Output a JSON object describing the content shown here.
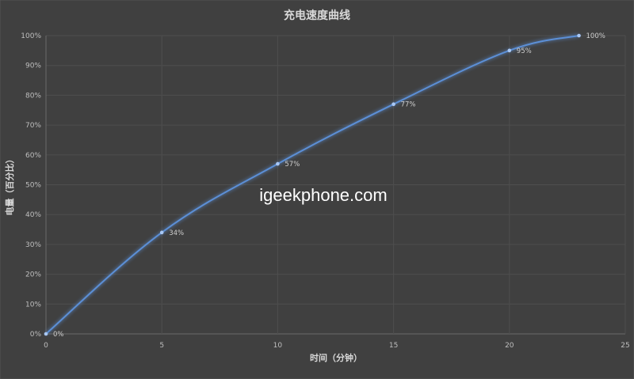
{
  "chart_data": {
    "type": "line",
    "title": "充电速度曲线",
    "xlabel": "时间（分钟）",
    "ylabel": "电量（百分比）",
    "watermark": "igeekphone.com",
    "xlim": [
      0,
      25
    ],
    "ylim": [
      0,
      100
    ],
    "xticks": [
      "0",
      "5",
      "10",
      "15",
      "20",
      "25"
    ],
    "yticks": [
      "0%",
      "10%",
      "20%",
      "30%",
      "40%",
      "50%",
      "60%",
      "70%",
      "80%",
      "90%",
      "100%"
    ],
    "grid": true,
    "smooth": true,
    "x": [
      0,
      5,
      10,
      15,
      20,
      23
    ],
    "values": [
      0,
      34,
      57,
      77,
      95,
      100
    ],
    "data_labels": [
      "0%",
      "34%",
      "57%",
      "77%",
      "95%",
      "100%"
    ],
    "colors": {
      "background": "#404040",
      "grid": "#4e4e4e",
      "line": "#5b8fd6",
      "text": "#bfbfbf"
    }
  }
}
